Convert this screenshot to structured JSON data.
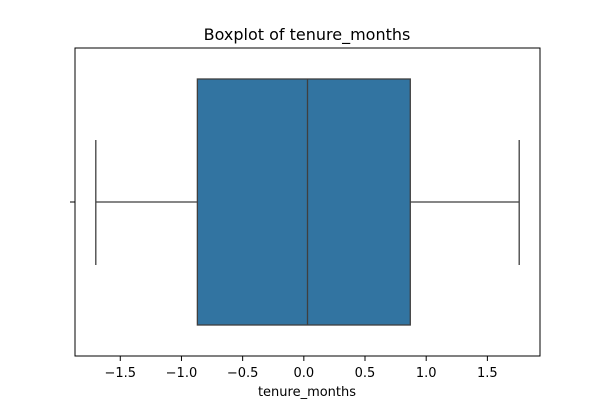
{
  "chart_data": {
    "type": "box",
    "title": "Boxplot of tenure_months",
    "xlabel": "tenure_months",
    "ylabel": "",
    "orientation": "horizontal",
    "xlim": [
      -1.87,
      1.93
    ],
    "xticks": [
      -1.5,
      -1.0,
      -0.5,
      0.0,
      0.5,
      1.0,
      1.5
    ],
    "xtick_labels": [
      "−1.5",
      "−1.0",
      "−0.5",
      "0.0",
      "0.5",
      "1.0",
      "1.5"
    ],
    "box": {
      "whisker_low": -1.7,
      "q1": -0.87,
      "median": 0.03,
      "q3": 0.87,
      "whisker_high": 1.76
    },
    "colors": {
      "box_fill": "#3274a1",
      "lines": "#3f3f3f",
      "frame": "#000000"
    },
    "grid": false
  }
}
